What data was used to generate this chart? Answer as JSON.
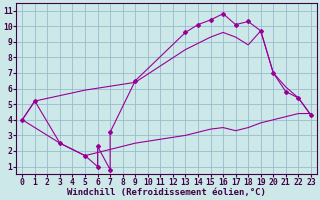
{
  "background_color": "#cce8e8",
  "line_color": "#990099",
  "grid_color": "#99bbcc",
  "xlabel": "Windchill (Refroidissement éolien,°C)",
  "xlabel_fontsize": 6.5,
  "tick_fontsize": 5.8,
  "xlim": [
    -0.5,
    23.5
  ],
  "ylim": [
    0.5,
    11.5
  ],
  "xticks": [
    0,
    1,
    2,
    3,
    4,
    5,
    6,
    7,
    8,
    9,
    10,
    11,
    12,
    13,
    14,
    15,
    16,
    17,
    18,
    19,
    20,
    21,
    22,
    23
  ],
  "yticks": [
    1,
    2,
    3,
    4,
    5,
    6,
    7,
    8,
    9,
    10,
    11
  ],
  "line_jagged_x": [
    0,
    1,
    3,
    5,
    6,
    6,
    7,
    7,
    9,
    13,
    14,
    15,
    16,
    17,
    18,
    19,
    20,
    21,
    22,
    23
  ],
  "line_jagged_y": [
    4.0,
    5.2,
    2.5,
    1.7,
    1.0,
    2.3,
    0.8,
    3.2,
    6.5,
    9.6,
    10.1,
    10.4,
    10.8,
    10.1,
    10.3,
    9.7,
    7.0,
    5.8,
    5.4,
    4.3
  ],
  "line_upper_x": [
    0,
    1,
    5,
    9,
    13,
    14,
    15,
    16,
    17,
    18,
    19,
    20,
    21,
    22,
    23
  ],
  "line_upper_y": [
    4.0,
    5.2,
    5.9,
    6.4,
    8.5,
    8.9,
    9.3,
    9.6,
    9.3,
    8.8,
    9.7,
    7.0,
    6.1,
    5.4,
    4.3
  ],
  "line_lower_x": [
    0,
    3,
    5,
    9,
    13,
    14,
    15,
    16,
    17,
    18,
    19,
    20,
    21,
    22,
    23
  ],
  "line_lower_y": [
    4.0,
    2.5,
    1.7,
    2.5,
    3.0,
    3.2,
    3.4,
    3.5,
    3.3,
    3.5,
    3.8,
    4.0,
    4.2,
    4.4,
    4.4
  ],
  "spine_color": "#440044",
  "text_color": "#440044"
}
